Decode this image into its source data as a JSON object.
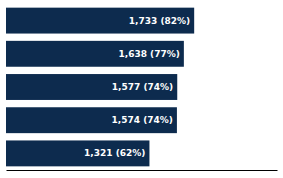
{
  "chart_data": {
    "type": "bar",
    "orientation": "horizontal",
    "categories": [
      null,
      null,
      null,
      null,
      null
    ],
    "values": [
      1733,
      1638,
      1577,
      1574,
      1321
    ],
    "value_labels": [
      "1,733 (82%)",
      "1,638 (77%)",
      "1,577 (74%)",
      "1,574 (74%)",
      "1,321 (62%)"
    ],
    "data_labels": true,
    "color": "#0d2b4e",
    "xlim": [
      0,
      2495.7
    ],
    "xticks": [],
    "tick_labels": false,
    "grid": false
  }
}
